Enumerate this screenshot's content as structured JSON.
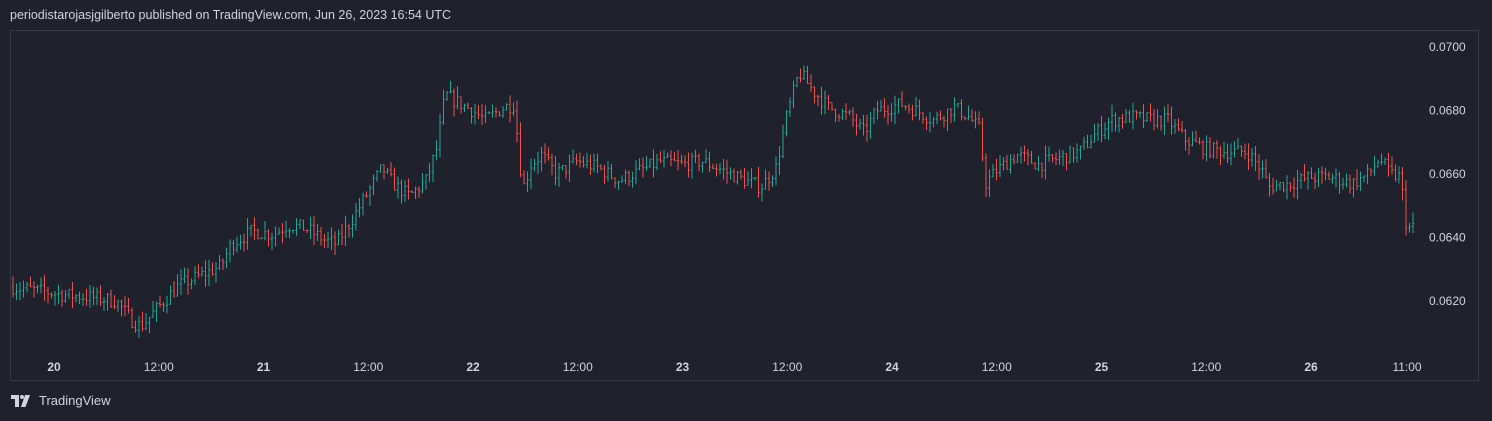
{
  "header": {
    "published_text": "periodistarojasjgilberto published on TradingView.com, Jun 26, 2023 16:54 UTC"
  },
  "footer": {
    "brand": "TradingView"
  },
  "colors": {
    "background": "#1f222d",
    "up": "#26a69a",
    "down": "#ef5350",
    "border": "#363a45",
    "text": "#d1d4dc"
  },
  "chart_data": {
    "type": "ohlc",
    "title": "",
    "xlabel": "",
    "ylabel": "",
    "ylim": [
      0.0605,
      0.0705
    ],
    "y_ticks": [
      "0.0620",
      "0.0640",
      "0.0660",
      "0.0680",
      "0.0700"
    ],
    "x_ticks": [
      {
        "label": "20",
        "bold": true,
        "day": 20
      },
      {
        "label": "12:00",
        "bold": false,
        "day": 20.5
      },
      {
        "label": "21",
        "bold": true,
        "day": 21
      },
      {
        "label": "12:00",
        "bold": false,
        "day": 21.5
      },
      {
        "label": "22",
        "bold": true,
        "day": 22
      },
      {
        "label": "12:00",
        "bold": false,
        "day": 22.5
      },
      {
        "label": "23",
        "bold": true,
        "day": 23
      },
      {
        "label": "12:00",
        "bold": false,
        "day": 23.5
      },
      {
        "label": "24",
        "bold": true,
        "day": 24
      },
      {
        "label": "12:00",
        "bold": false,
        "day": 24.5
      },
      {
        "label": "25",
        "bold": true,
        "day": 25
      },
      {
        "label": "12:00",
        "bold": false,
        "day": 25.5
      },
      {
        "label": "26",
        "bold": true,
        "day": 26
      },
      {
        "label": "11:00",
        "bold": false,
        "day": 26.4583
      }
    ],
    "x_range_days": [
      19.8,
      26.5
    ],
    "close_path": [
      [
        19.8,
        0.06245
      ],
      [
        19.9,
        0.06235
      ],
      [
        20.05,
        0.0622
      ],
      [
        20.2,
        0.0621
      ],
      [
        20.3,
        0.062
      ],
      [
        20.38,
        0.06135
      ],
      [
        20.42,
        0.0612
      ],
      [
        20.5,
        0.0618
      ],
      [
        20.6,
        0.0625
      ],
      [
        20.7,
        0.0628
      ],
      [
        20.8,
        0.0631
      ],
      [
        20.85,
        0.0638
      ],
      [
        20.95,
        0.0642
      ],
      [
        21.05,
        0.0641
      ],
      [
        21.12,
        0.0644
      ],
      [
        21.2,
        0.0643
      ],
      [
        21.3,
        0.0639
      ],
      [
        21.35,
        0.0638
      ],
      [
        21.42,
        0.0645
      ],
      [
        21.5,
        0.0654
      ],
      [
        21.57,
        0.0662
      ],
      [
        21.62,
        0.0657
      ],
      [
        21.7,
        0.0653
      ],
      [
        21.78,
        0.0658
      ],
      [
        21.83,
        0.0668
      ],
      [
        21.87,
        0.0685
      ],
      [
        21.92,
        0.0683
      ],
      [
        22.0,
        0.068
      ],
      [
        22.06,
        0.0677
      ],
      [
        22.15,
        0.0681
      ],
      [
        22.2,
        0.0682
      ],
      [
        22.24,
        0.0655
      ],
      [
        22.28,
        0.0663
      ],
      [
        22.33,
        0.0666
      ],
      [
        22.4,
        0.066
      ],
      [
        22.5,
        0.0664
      ],
      [
        22.6,
        0.0662
      ],
      [
        22.7,
        0.0658
      ],
      [
        22.8,
        0.0661
      ],
      [
        22.9,
        0.0664
      ],
      [
        23.0,
        0.0663
      ],
      [
        23.1,
        0.0664
      ],
      [
        23.2,
        0.0661
      ],
      [
        23.3,
        0.0658
      ],
      [
        23.38,
        0.0656
      ],
      [
        23.45,
        0.0662
      ],
      [
        23.5,
        0.0678
      ],
      [
        23.56,
        0.0692
      ],
      [
        23.63,
        0.0686
      ],
      [
        23.7,
        0.0681
      ],
      [
        23.8,
        0.0678
      ],
      [
        23.87,
        0.0673
      ],
      [
        23.93,
        0.068
      ],
      [
        24.05,
        0.0682
      ],
      [
        24.12,
        0.068
      ],
      [
        24.2,
        0.0677
      ],
      [
        24.3,
        0.0681
      ],
      [
        24.37,
        0.0678
      ],
      [
        24.42,
        0.0674
      ],
      [
        24.45,
        0.0657
      ],
      [
        24.5,
        0.0661
      ],
      [
        24.6,
        0.0666
      ],
      [
        24.7,
        0.0663
      ],
      [
        24.8,
        0.0665
      ],
      [
        24.9,
        0.0667
      ],
      [
        24.98,
        0.0673
      ],
      [
        25.05,
        0.0677
      ],
      [
        25.15,
        0.0678
      ],
      [
        25.25,
        0.0677
      ],
      [
        25.32,
        0.0677
      ],
      [
        25.4,
        0.0671
      ],
      [
        25.5,
        0.0668
      ],
      [
        25.6,
        0.0667
      ],
      [
        25.7,
        0.0667
      ],
      [
        25.77,
        0.0661
      ],
      [
        25.8,
        0.0656
      ],
      [
        25.9,
        0.0657
      ],
      [
        26.0,
        0.0659
      ],
      [
        26.1,
        0.0659
      ],
      [
        26.2,
        0.0657
      ],
      [
        26.28,
        0.066
      ],
      [
        26.33,
        0.0665
      ],
      [
        26.38,
        0.066
      ],
      [
        26.43,
        0.0659
      ],
      [
        26.46,
        0.0643
      ]
    ]
  }
}
